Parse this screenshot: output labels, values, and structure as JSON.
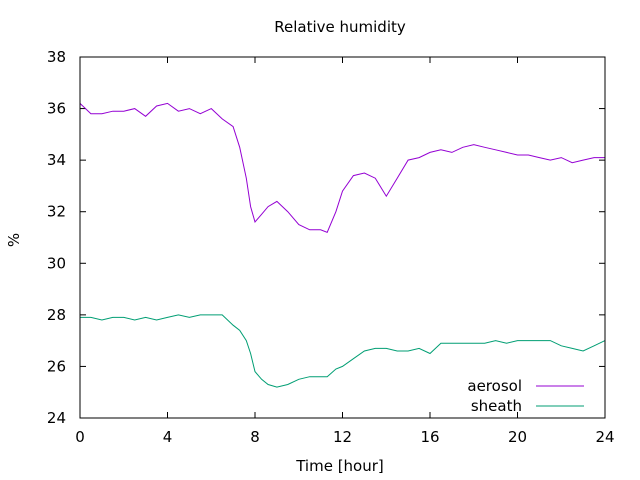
{
  "chart_data": {
    "type": "line",
    "title": "Relative humidity",
    "xlabel": "Time [hour]",
    "ylabel": "%",
    "xlim": [
      0,
      24
    ],
    "ylim": [
      24,
      38
    ],
    "xticks": [
      0,
      4,
      8,
      12,
      16,
      20,
      24
    ],
    "yticks": [
      24,
      26,
      28,
      30,
      32,
      34,
      36,
      38
    ],
    "grid": false,
    "legend_position": "bottom-right",
    "series": [
      {
        "name": "aerosol",
        "color": "#9400d3",
        "x": [
          0,
          0.5,
          1,
          1.5,
          2,
          2.5,
          3,
          3.5,
          4,
          4.5,
          5,
          5.5,
          6,
          6.5,
          7,
          7.3,
          7.6,
          7.8,
          8.0,
          8.3,
          8.6,
          9.0,
          9.5,
          10,
          10.5,
          11,
          11.3,
          11.7,
          12,
          12.5,
          13,
          13.5,
          14,
          14.5,
          15,
          15.5,
          16,
          16.5,
          17,
          17.5,
          18,
          18.5,
          19,
          19.5,
          20,
          20.5,
          21,
          21.5,
          22,
          22.5,
          23,
          23.5,
          24
        ],
        "y": [
          36.2,
          35.8,
          35.8,
          35.9,
          35.9,
          36.0,
          35.7,
          36.1,
          36.2,
          35.9,
          36.0,
          35.8,
          36.0,
          35.6,
          35.3,
          34.5,
          33.3,
          32.2,
          31.6,
          31.9,
          32.2,
          32.4,
          32.0,
          31.5,
          31.3,
          31.3,
          31.2,
          32.0,
          32.8,
          33.4,
          33.5,
          33.3,
          32.6,
          33.3,
          34.0,
          34.1,
          34.3,
          34.4,
          34.3,
          34.5,
          34.6,
          34.5,
          34.4,
          34.3,
          34.2,
          34.2,
          34.1,
          34.0,
          34.1,
          33.9,
          34.0,
          34.1,
          34.1
        ]
      },
      {
        "name": "sheath",
        "color": "#009e73",
        "x": [
          0,
          0.5,
          1,
          1.5,
          2,
          2.5,
          3,
          3.5,
          4,
          4.5,
          5,
          5.5,
          6,
          6.5,
          7,
          7.3,
          7.6,
          7.8,
          8.0,
          8.3,
          8.6,
          9.0,
          9.5,
          10,
          10.5,
          11,
          11.3,
          11.7,
          12,
          12.5,
          13,
          13.5,
          14,
          14.5,
          15,
          15.5,
          16,
          16.5,
          17,
          17.5,
          18,
          18.5,
          19,
          19.5,
          20,
          20.5,
          21,
          21.5,
          22,
          22.5,
          23,
          23.5,
          24
        ],
        "y": [
          27.9,
          27.9,
          27.8,
          27.9,
          27.9,
          27.8,
          27.9,
          27.8,
          27.9,
          28.0,
          27.9,
          28.0,
          28.0,
          28.0,
          27.6,
          27.4,
          27.0,
          26.5,
          25.8,
          25.5,
          25.3,
          25.2,
          25.3,
          25.5,
          25.6,
          25.6,
          25.6,
          25.9,
          26.0,
          26.3,
          26.6,
          26.7,
          26.7,
          26.6,
          26.6,
          26.7,
          26.5,
          26.9,
          26.9,
          26.9,
          26.9,
          26.9,
          27.0,
          26.9,
          27.0,
          27.0,
          27.0,
          27.0,
          26.8,
          26.7,
          26.6,
          26.8,
          27.0
        ]
      }
    ]
  }
}
